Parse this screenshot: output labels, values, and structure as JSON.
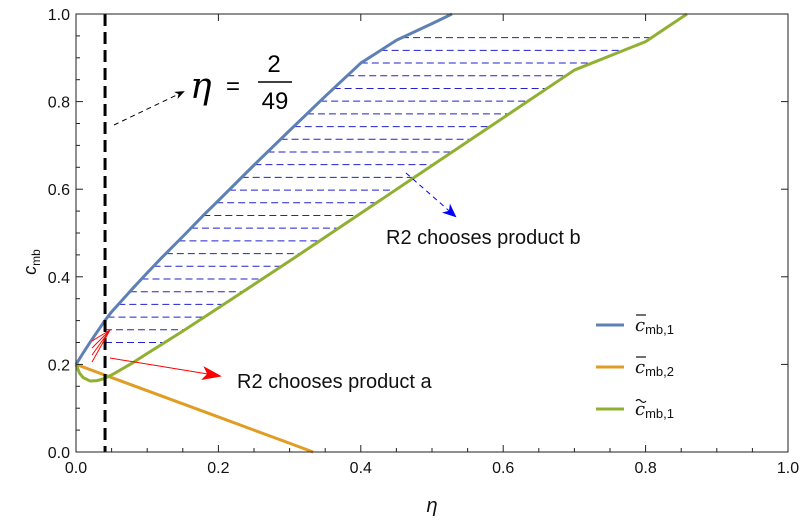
{
  "chart_data": {
    "type": "line",
    "xlabel": "η",
    "ylabel": {
      "base": "c",
      "sub": "mb"
    },
    "xlim": [
      0,
      1
    ],
    "ylim": [
      0,
      1
    ],
    "xticks": [
      {
        "v": 0.0,
        "label": "0.0"
      },
      {
        "v": 0.2,
        "label": "0.2"
      },
      {
        "v": 0.4,
        "label": "0.4"
      },
      {
        "v": 0.6,
        "label": "0.6"
      },
      {
        "v": 0.8,
        "label": "0.8"
      },
      {
        "v": 1.0,
        "label": "1.0"
      }
    ],
    "yticks": [
      {
        "v": 0.0,
        "label": "0.0"
      },
      {
        "v": 0.2,
        "label": "0.2"
      },
      {
        "v": 0.4,
        "label": "0.4"
      },
      {
        "v": 0.6,
        "label": "0.6"
      },
      {
        "v": 0.8,
        "label": "0.8"
      },
      {
        "v": 1.0,
        "label": "1.0"
      }
    ],
    "grid": false,
    "legend_position": "bottom-right",
    "series": [
      {
        "legend": {
          "base": "c",
          "accent": "bar",
          "sub": "mb,1"
        },
        "color": "#5e81b5",
        "x": [
          0.0,
          0.01,
          0.02,
          0.03,
          0.04,
          0.05,
          0.06,
          0.08,
          0.1,
          0.12,
          0.15,
          0.18,
          0.2,
          0.25,
          0.3,
          0.35,
          0.4,
          0.45,
          0.5,
          0.528
        ],
        "y": [
          0.2,
          0.226,
          0.251,
          0.275,
          0.299,
          0.32,
          0.338,
          0.374,
          0.409,
          0.443,
          0.492,
          0.542,
          0.574,
          0.655,
          0.734,
          0.812,
          0.888,
          0.94,
          0.978,
          1.0
        ]
      },
      {
        "legend": {
          "base": "c",
          "accent": "bar",
          "sub": "mb,2"
        },
        "color": "#e19c24",
        "x": [
          0.0,
          0.05,
          0.1,
          0.15,
          0.2,
          0.25,
          0.3,
          0.333
        ],
        "y": [
          0.2,
          0.17,
          0.14,
          0.11,
          0.08,
          0.05,
          0.02,
          0.0
        ]
      },
      {
        "legend": {
          "base": "c",
          "accent": "tilde",
          "sub": "mb,1"
        },
        "color": "#8fb032",
        "x": [
          0.0,
          0.005,
          0.01,
          0.02,
          0.03,
          0.04,
          0.05,
          0.06,
          0.08,
          0.1,
          0.15,
          0.2,
          0.3,
          0.4,
          0.5,
          0.6,
          0.7,
          0.8,
          0.858
        ],
        "y": [
          0.2,
          0.18,
          0.17,
          0.162,
          0.163,
          0.168,
          0.176,
          0.185,
          0.204,
          0.225,
          0.276,
          0.329,
          0.436,
          0.545,
          0.654,
          0.763,
          0.872,
          0.937,
          1.0
        ]
      }
    ],
    "reference_line": {
      "x": 0.0408,
      "color": "#000000",
      "style": "dashed"
    },
    "annotations": [
      {
        "type": "equation",
        "lhs": "η",
        "eq": "=",
        "numerator": "2",
        "denominator": "49"
      },
      {
        "type": "text",
        "text": "R2 chooses product b",
        "color": "#0000ff"
      },
      {
        "type": "text",
        "text": "R2 chooses product a",
        "color": "#ff0000"
      }
    ],
    "hatch_region": {
      "y_from": 0.25,
      "y_to": 0.97,
      "y_step": 0.029,
      "color": "#2222cc",
      "between": [
        "series.0",
        "series.2"
      ]
    }
  }
}
